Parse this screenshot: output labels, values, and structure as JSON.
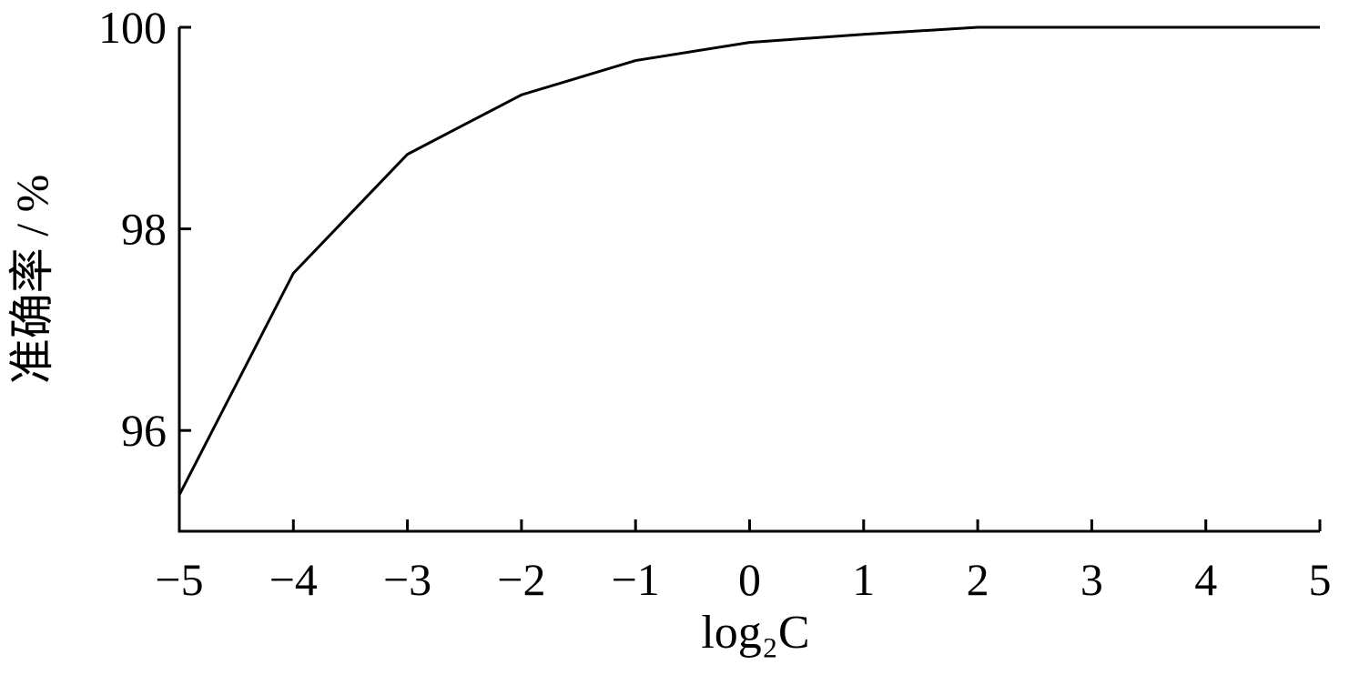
{
  "chart_data": {
    "type": "line",
    "xlabel": "log₂C",
    "ylabel": "准确率 / %",
    "x": [
      -5,
      -4,
      -3,
      -2,
      -1,
      0,
      1,
      2,
      3,
      4,
      5
    ],
    "series": [
      {
        "color": "#000000",
        "values": [
          95.36,
          97.56,
          98.74,
          99.33,
          99.67,
          99.85,
          99.93,
          100,
          100,
          100,
          100
        ]
      }
    ],
    "xlim": [
      -5,
      5
    ],
    "xticks": [
      {
        "value": -5,
        "label": "−5"
      },
      {
        "value": -4,
        "label": "−4"
      },
      {
        "value": -3,
        "label": "−3"
      },
      {
        "value": -2,
        "label": "−2"
      },
      {
        "value": -1,
        "label": "−1"
      },
      0,
      1,
      2,
      3,
      4,
      5
    ],
    "ylim": [
      95,
      100
    ],
    "yticks": [
      96,
      98,
      100
    ],
    "grid": false
  }
}
